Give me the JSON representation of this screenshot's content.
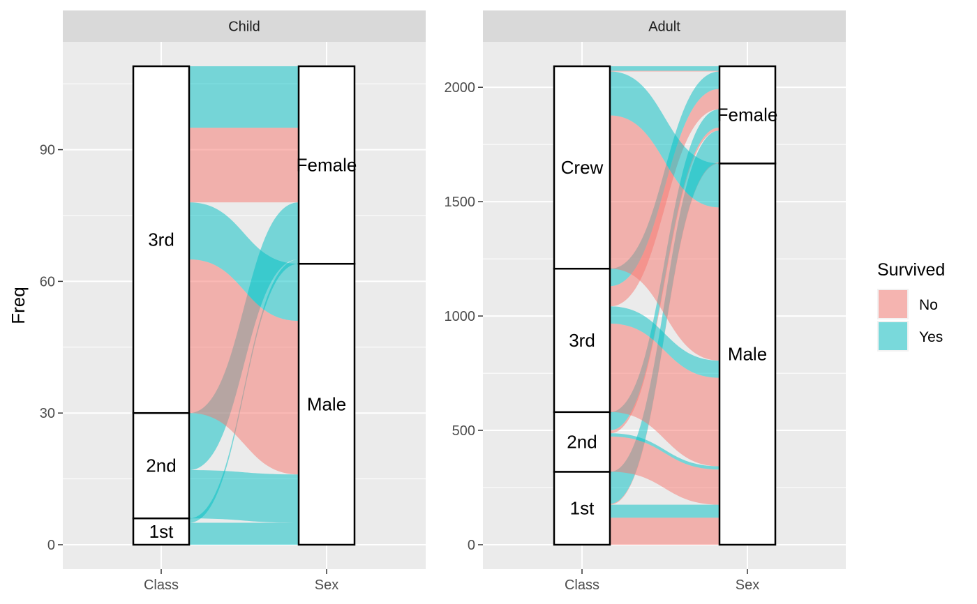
{
  "chart_data": {
    "type": "alluvial",
    "ylabel": "Freq",
    "axes_x": [
      "Class",
      "Sex"
    ],
    "legend": {
      "title": "Survived",
      "placement": "right",
      "items": [
        {
          "label": "No",
          "color": "#F8766D"
        },
        {
          "label": "Yes",
          "color": "#00BFC4"
        }
      ]
    },
    "panels": [
      {
        "title": "Child",
        "ylim": [
          0,
          109
        ],
        "yticks": [
          0,
          30,
          60,
          90
        ],
        "class_order": [
          "1st",
          "2nd",
          "3rd"
        ],
        "sex_order": [
          "Male",
          "Female"
        ],
        "flows": [
          {
            "class": "1st",
            "sex": "Male",
            "survived": "Yes",
            "freq": 5
          },
          {
            "class": "1st",
            "sex": "Female",
            "survived": "Yes",
            "freq": 1
          },
          {
            "class": "2nd",
            "sex": "Male",
            "survived": "Yes",
            "freq": 11
          },
          {
            "class": "2nd",
            "sex": "Female",
            "survived": "Yes",
            "freq": 13
          },
          {
            "class": "3rd",
            "sex": "Male",
            "survived": "No",
            "freq": 35
          },
          {
            "class": "3rd",
            "sex": "Male",
            "survived": "Yes",
            "freq": 13
          },
          {
            "class": "3rd",
            "sex": "Female",
            "survived": "No",
            "freq": 17
          },
          {
            "class": "3rd",
            "sex": "Female",
            "survived": "Yes",
            "freq": 14
          }
        ]
      },
      {
        "title": "Adult",
        "ylim": [
          0,
          2092
        ],
        "yticks": [
          0,
          500,
          1000,
          1500,
          2000
        ],
        "class_order": [
          "1st",
          "2nd",
          "3rd",
          "Crew"
        ],
        "sex_order": [
          "Male",
          "Female"
        ],
        "flows": [
          {
            "class": "1st",
            "sex": "Male",
            "survived": "No",
            "freq": 118
          },
          {
            "class": "1st",
            "sex": "Male",
            "survived": "Yes",
            "freq": 57
          },
          {
            "class": "1st",
            "sex": "Female",
            "survived": "No",
            "freq": 4
          },
          {
            "class": "1st",
            "sex": "Female",
            "survived": "Yes",
            "freq": 140
          },
          {
            "class": "2nd",
            "sex": "Male",
            "survived": "No",
            "freq": 154
          },
          {
            "class": "2nd",
            "sex": "Male",
            "survived": "Yes",
            "freq": 14
          },
          {
            "class": "2nd",
            "sex": "Female",
            "survived": "No",
            "freq": 13
          },
          {
            "class": "2nd",
            "sex": "Female",
            "survived": "Yes",
            "freq": 80
          },
          {
            "class": "3rd",
            "sex": "Male",
            "survived": "No",
            "freq": 387
          },
          {
            "class": "3rd",
            "sex": "Male",
            "survived": "Yes",
            "freq": 75
          },
          {
            "class": "3rd",
            "sex": "Female",
            "survived": "No",
            "freq": 89
          },
          {
            "class": "3rd",
            "sex": "Female",
            "survived": "Yes",
            "freq": 76
          },
          {
            "class": "Crew",
            "sex": "Male",
            "survived": "No",
            "freq": 670
          },
          {
            "class": "Crew",
            "sex": "Male",
            "survived": "Yes",
            "freq": 192
          },
          {
            "class": "Crew",
            "sex": "Female",
            "survived": "No",
            "freq": 3
          },
          {
            "class": "Crew",
            "sex": "Female",
            "survived": "Yes",
            "freq": 20
          }
        ]
      }
    ]
  }
}
